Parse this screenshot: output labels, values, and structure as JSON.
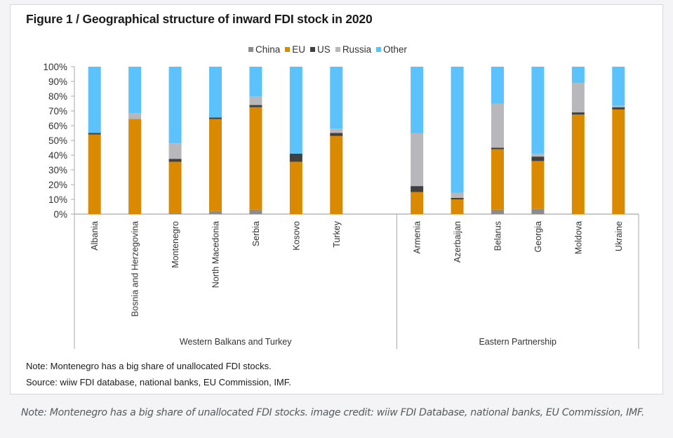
{
  "figure": {
    "title": "Figure 1 / Geographical structure of inward FDI stock in 2020",
    "note": "Note: Montenegro has a big share of unallocated FDI stocks.",
    "source": "Source: wiiw FDI database, national banks, EU Commission, IMF."
  },
  "caption": "Note: Montenegro has a big share of unallocated FDI stocks. image credit: wiiw FDI Database, national banks, EU Commission, IMF.",
  "chart_data": {
    "type": "bar",
    "stacked": true,
    "title": "Figure 1 / Geographical structure of inward FDI stock in 2020",
    "xlabel": "",
    "ylabel": "",
    "ylim": [
      0,
      100
    ],
    "yticks": [
      "0%",
      "10%",
      "20%",
      "30%",
      "40%",
      "50%",
      "60%",
      "70%",
      "80%",
      "90%",
      "100%"
    ],
    "legend_position": "top-center",
    "grid": false,
    "groups": [
      {
        "name": "Western Balkans and Turkey",
        "categories": [
          "Albania",
          "Bosnia and Herzegovina",
          "Montenegro",
          "North Macedonia",
          "Serbia",
          "Kosovo",
          "Turkey"
        ]
      },
      {
        "name": "Eastern Partnership",
        "categories": [
          "Armenia",
          "Azerbaijan",
          "Belarus",
          "Georgia",
          "Moldova",
          "Ukraine"
        ]
      }
    ],
    "categories": [
      "Albania",
      "Bosnia and Herzegovina",
      "Montenegro",
      "North Macedonia",
      "Serbia",
      "Kosovo",
      "Turkey",
      "Armenia",
      "Azerbaijan",
      "Belarus",
      "Georgia",
      "Moldova",
      "Ukraine"
    ],
    "series": [
      {
        "name": "China",
        "color": "#8c8c8c",
        "values": [
          0,
          0,
          0.5,
          2,
          3,
          0,
          0,
          0,
          0,
          3,
          3.5,
          0,
          0
        ]
      },
      {
        "name": "EU",
        "color": "#d98a00",
        "values": [
          54,
          64.5,
          35,
          62.5,
          69.5,
          35.5,
          53,
          15,
          10,
          41,
          32.5,
          67.5,
          71
        ]
      },
      {
        "name": "US",
        "color": "#404040",
        "values": [
          1,
          0,
          2,
          1,
          1.5,
          5.5,
          2,
          4,
          1,
          1,
          3,
          1.5,
          1.5
        ]
      },
      {
        "name": "Russia",
        "color": "#b8b8bc",
        "values": [
          0,
          4,
          10.5,
          0,
          6,
          0,
          3,
          36,
          3.5,
          30,
          2,
          20,
          1
        ]
      },
      {
        "name": "Other",
        "color": "#5bc2fb",
        "values": [
          45,
          31.5,
          52,
          34.5,
          20,
          59,
          42,
          45,
          85.5,
          25,
          59,
          11,
          26.5
        ]
      }
    ]
  }
}
